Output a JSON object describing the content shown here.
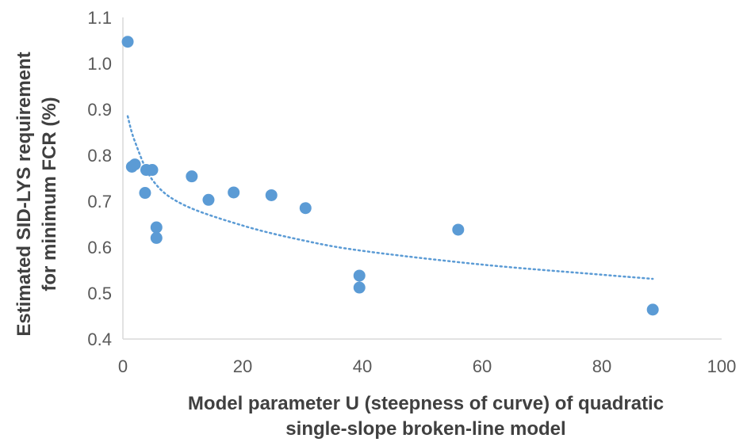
{
  "chart_data": {
    "type": "scatter",
    "title": "",
    "xlabel_lines": [
      "Model parameter U (steepness of curve) of quadratic",
      "single-slope broken-line model"
    ],
    "ylabel_lines": [
      "Estimated SID-LYS requirement",
      "for minimum FCR (%)"
    ],
    "xlim": [
      0,
      100
    ],
    "ylim": [
      0.4,
      1.1
    ],
    "xticks": [
      0,
      20,
      40,
      60,
      80,
      100
    ],
    "yticks": [
      0.4,
      0.5,
      0.6,
      0.7,
      0.8,
      0.9,
      1.0,
      1.1
    ],
    "xtick_labels": [
      "0",
      "20",
      "40",
      "60",
      "80",
      "100"
    ],
    "ytick_labels": [
      "0.4",
      "0.5",
      "0.6",
      "0.7",
      "0.8",
      "0.9",
      "1.0",
      "1.1"
    ],
    "grid": false,
    "legend": "none",
    "marker_color": "#5B9BD5",
    "trendline_color": "#5B9BD5",
    "points": [
      {
        "x": 0.8,
        "y": 1.047
      },
      {
        "x": 1.5,
        "y": 0.775
      },
      {
        "x": 2.0,
        "y": 0.78
      },
      {
        "x": 3.9,
        "y": 0.768
      },
      {
        "x": 4.9,
        "y": 0.768
      },
      {
        "x": 3.7,
        "y": 0.718
      },
      {
        "x": 5.6,
        "y": 0.643
      },
      {
        "x": 5.6,
        "y": 0.62
      },
      {
        "x": 11.5,
        "y": 0.754
      },
      {
        "x": 14.3,
        "y": 0.703
      },
      {
        "x": 18.5,
        "y": 0.719
      },
      {
        "x": 24.8,
        "y": 0.713
      },
      {
        "x": 30.5,
        "y": 0.685
      },
      {
        "x": 39.5,
        "y": 0.538
      },
      {
        "x": 39.5,
        "y": 0.512
      },
      {
        "x": 56.0,
        "y": 0.638
      },
      {
        "x": 88.5,
        "y": 0.464
      }
    ],
    "trendline": {
      "type": "logarithmic",
      "x_range": [
        0.8,
        88.5
      ],
      "points": [
        {
          "x": 0.8,
          "y": 0.885
        },
        {
          "x": 2,
          "y": 0.83
        },
        {
          "x": 5,
          "y": 0.745
        },
        {
          "x": 10,
          "y": 0.693
        },
        {
          "x": 20,
          "y": 0.647
        },
        {
          "x": 30,
          "y": 0.615
        },
        {
          "x": 40,
          "y": 0.592
        },
        {
          "x": 60,
          "y": 0.562
        },
        {
          "x": 80,
          "y": 0.54
        },
        {
          "x": 88.5,
          "y": 0.531
        }
      ]
    }
  }
}
